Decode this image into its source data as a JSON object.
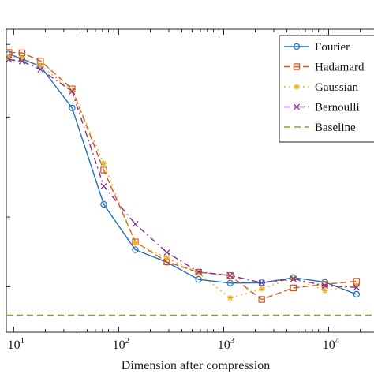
{
  "chart_data": {
    "type": "line",
    "xlabel": "Dimension after compression",
    "ylabel": "",
    "x_scale": "log",
    "xlim": [
      8.5,
      30000
    ],
    "ylim": [
      0,
      1
    ],
    "grid": false,
    "legend_position": "top-right",
    "x_ticks": [
      {
        "value": 10,
        "base": "10",
        "exp": "1"
      },
      {
        "value": 100,
        "base": "10",
        "exp": "2"
      },
      {
        "value": 1000,
        "base": "10",
        "exp": "3"
      },
      {
        "value": 10000,
        "base": "10",
        "exp": "4"
      }
    ],
    "series": [
      {
        "name": "Fourier",
        "color": "#1f6fb5",
        "dash": "solid",
        "marker": "circle",
        "x": [
          9,
          12,
          18,
          36,
          72,
          144,
          288,
          576,
          1152,
          2304,
          4608,
          9216,
          18432
        ],
        "y": [
          0.918,
          0.902,
          0.877,
          0.74,
          0.422,
          0.272,
          0.231,
          0.174,
          0.162,
          0.163,
          0.18,
          0.165,
          0.125
        ]
      },
      {
        "name": "Hadamard",
        "color": "#d9541a",
        "dash": "8,4",
        "marker": "square",
        "x": [
          9,
          12,
          18,
          36,
          72,
          144,
          288,
          576,
          1152,
          2304,
          4608,
          9216,
          18432
        ],
        "y": [
          0.923,
          0.922,
          0.895,
          0.803,
          0.535,
          0.298,
          0.232,
          0.198,
          0.187,
          0.108,
          0.146,
          0.158,
          0.168
        ]
      },
      {
        "name": "Gaussian",
        "color": "#edb120",
        "dash": "2,4",
        "marker": "star",
        "x": [
          9,
          12,
          18,
          36,
          72,
          144,
          288,
          576,
          1152,
          2304,
          4608,
          9216,
          18432
        ],
        "y": [
          0.907,
          0.905,
          0.88,
          0.798,
          0.557,
          0.294,
          0.245,
          0.195,
          0.113,
          0.143,
          0.178,
          0.137,
          0.155
        ]
      },
      {
        "name": "Bernoulli",
        "color": "#7e2f8e",
        "dash": "8,4,2,4",
        "marker": "x",
        "x": [
          9,
          12,
          18,
          36,
          72,
          144,
          288,
          576,
          1152,
          2304,
          4608,
          9216,
          18432
        ],
        "y": [
          0.9,
          0.894,
          0.867,
          0.795,
          0.482,
          0.357,
          0.263,
          0.199,
          0.187,
          0.163,
          0.176,
          0.153,
          0.148
        ]
      },
      {
        "name": "Baseline",
        "color": "#77ac30",
        "dash": "8,5",
        "marker": "none",
        "x": [
          8.5,
          30000
        ],
        "y": [
          0.056,
          0.056
        ]
      }
    ]
  }
}
